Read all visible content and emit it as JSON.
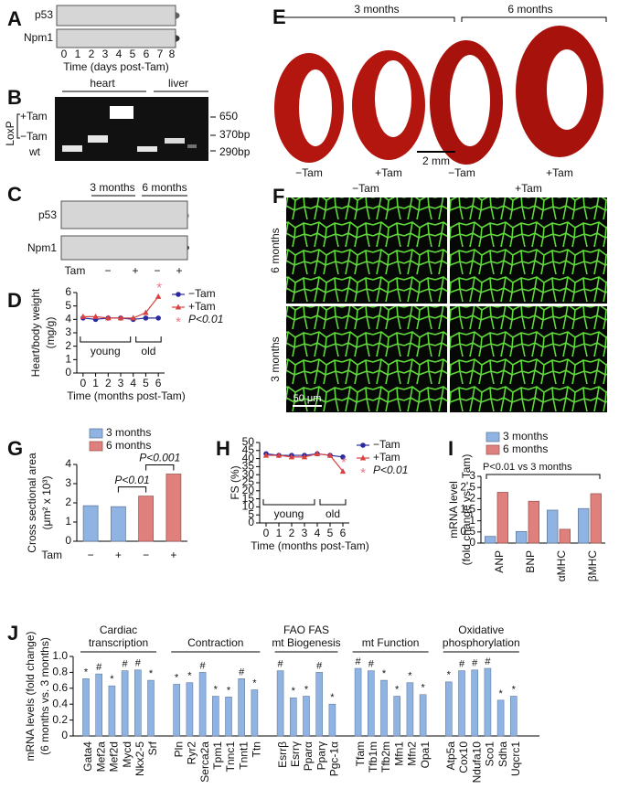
{
  "panel_a": {
    "label": "A",
    "rows": [
      "p53",
      "Npm1"
    ],
    "lanes": [
      "0",
      "1",
      "2",
      "3",
      "4",
      "5",
      "6",
      "7",
      "8"
    ],
    "xlabel": "Time (days post-Tam)"
  },
  "panel_b": {
    "label": "B",
    "groups": [
      "heart",
      "liver"
    ],
    "loxp": "LoxP",
    "bands": [
      "+Tam",
      "−Tam",
      "wt"
    ],
    "sizes": [
      "650",
      "370bp",
      "290bp"
    ]
  },
  "panel_c": {
    "label": "C",
    "groups": [
      "3 months",
      "6 months"
    ],
    "rows": [
      "p53",
      "Npm1"
    ],
    "tam_label": "Tam",
    "tam": [
      "−",
      "+",
      "−",
      "+"
    ]
  },
  "panel_e": {
    "label": "E",
    "groups": [
      "3 months",
      "6 months"
    ],
    "conditions": [
      "−Tam",
      "+Tam",
      "−Tam",
      "+Tam"
    ],
    "scale": "2 mm"
  },
  "panel_f": {
    "label": "F",
    "columns": [
      "−Tam",
      "+Tam"
    ],
    "rows": [
      "6 months",
      "3 months"
    ],
    "scale": "50 μm"
  },
  "chart_data": [
    {
      "panel": "D",
      "type": "line",
      "x": [
        0,
        1,
        2,
        3,
        4,
        5,
        6
      ],
      "xlim": [
        -0.5,
        6.5
      ],
      "xticks": [
        0,
        1,
        2,
        3,
        4,
        5,
        6
      ],
      "ylim": [
        0,
        6
      ],
      "yticks": [
        0,
        1,
        2,
        3,
        4,
        5,
        6
      ],
      "xlabel": "Time (months post-Tam)",
      "ylabel": [
        "Heart/body weight",
        "(mg/g)"
      ],
      "series": [
        {
          "name": "−Tam",
          "color": "#2a2a9e",
          "values": [
            4.1,
            4.0,
            4.1,
            4.1,
            4.0,
            4.1,
            4.1
          ]
        },
        {
          "name": "+Tam",
          "color": "#d94040",
          "values": [
            4.2,
            4.2,
            4.1,
            4.1,
            4.1,
            4.5,
            5.7
          ]
        }
      ],
      "significance": {
        "symbol": "*",
        "label": "P<0.01",
        "color": "#e87a8a"
      },
      "brackets": [
        "young",
        "old"
      ]
    },
    {
      "panel": "G",
      "type": "bar",
      "categories": [
        "−",
        "+",
        "−",
        "+"
      ],
      "category_title": "Tam",
      "ylim": [
        0,
        4
      ],
      "yticks": [
        0,
        1,
        2,
        3,
        4
      ],
      "ylabel": [
        "Cross sectional area",
        "(μm² x 10³)"
      ],
      "series": [
        {
          "name": "3 months",
          "color": "#8fb4e3",
          "values": [
            1.85,
            1.8,
            null,
            null
          ]
        },
        {
          "name": "6 months",
          "color": "#e0807c",
          "values": [
            null,
            null,
            2.35,
            3.5
          ]
        }
      ],
      "annotations": [
        "P<0.01",
        "P<0.001"
      ]
    },
    {
      "panel": "H",
      "type": "line",
      "x": [
        0,
        1,
        2,
        3,
        4,
        5,
        6
      ],
      "xlim": [
        -0.5,
        6.5
      ],
      "xticks": [
        0,
        1,
        2,
        3,
        4,
        5,
        6
      ],
      "ylim": [
        0,
        50
      ],
      "yticks": [
        0,
        5,
        10,
        15,
        20,
        25,
        30,
        35,
        40,
        45,
        50
      ],
      "xlabel": "Time (months post-Tam)",
      "ylabel": [
        "FS (%)"
      ],
      "series": [
        {
          "name": "−Tam",
          "color": "#2a2a9e",
          "values": [
            43,
            42,
            42,
            42,
            43,
            42,
            41
          ]
        },
        {
          "name": "+Tam",
          "color": "#d94040",
          "values": [
            42,
            42,
            41,
            41,
            43,
            42,
            32
          ]
        }
      ],
      "significance": {
        "symbol": "*",
        "label": "P<0.01",
        "color": "#e87a8a"
      },
      "brackets": [
        "young",
        "old"
      ]
    },
    {
      "panel": "I",
      "type": "bar",
      "categories": [
        "ANP",
        "BNP",
        "αMHC",
        "βMHC"
      ],
      "ylim": [
        0,
        3
      ],
      "yticks": [
        0,
        0.5,
        1,
        1.5,
        2,
        2.5,
        3
      ],
      "ylabel": [
        "mRNA level",
        "(fold change vs. - Tam)"
      ],
      "series": [
        {
          "name": "3 months",
          "color": "#8fb4e3",
          "values": [
            0.3,
            0.52,
            1.48,
            1.55
          ]
        },
        {
          "name": "6 months",
          "color": "#e0807c",
          "values": [
            2.28,
            1.88,
            0.62,
            2.22
          ]
        }
      ],
      "annotation": "P<0.01 vs 3 months"
    },
    {
      "panel": "J",
      "type": "bar",
      "color": "#8fb4e3",
      "ylim": [
        0,
        1
      ],
      "yticks": [
        0,
        0.2,
        0.4,
        0.6,
        0.8,
        {
          "value": 1,
          "label": "1.0"
        }
      ],
      "ylabel": [
        "mRNA levels (fold change)",
        "(6 months vs. 3 months)"
      ],
      "groups": [
        {
          "label": [
            "Cardiac",
            "transcription"
          ],
          "categories": [
            "Gata4",
            "Mef2a",
            "Mef2d",
            "Mycd",
            "Nkx2-5",
            "Srf"
          ],
          "values": [
            0.72,
            0.78,
            0.63,
            0.82,
            0.83,
            0.7
          ],
          "markers": [
            "*",
            "#",
            "*",
            "#",
            "#",
            "*"
          ]
        },
        {
          "label": [
            "Contraction"
          ],
          "categories": [
            "Pln",
            "Ryr2",
            "Serca2a",
            "Tpm1",
            "Tnnc1",
            "Tnnt1",
            "Ttn"
          ],
          "values": [
            0.65,
            0.67,
            0.8,
            0.5,
            0.49,
            0.72,
            0.58
          ],
          "markers": [
            "*",
            "*",
            "#",
            "*",
            "*",
            "#",
            "*"
          ]
        },
        {
          "label": [
            "FAO FAS",
            "mt Biogenesis"
          ],
          "categories": [
            "Esrrβ",
            "Esrrγ",
            "Pparα",
            "Pparγ",
            "Pgc-1α"
          ],
          "values": [
            0.82,
            0.48,
            0.5,
            0.8,
            0.4
          ],
          "markers": [
            "#",
            "*",
            "*",
            "#",
            "*"
          ]
        },
        {
          "label": [
            "mt Function"
          ],
          "categories": [
            "Tfam",
            "Tfb1m",
            "Tfb2m",
            "Mfn1",
            "Mfn2",
            "Opa1"
          ],
          "values": [
            0.85,
            0.82,
            0.7,
            0.5,
            0.67,
            0.52
          ],
          "markers": [
            "#",
            "#",
            "*",
            "*",
            "*",
            "*"
          ]
        },
        {
          "label": [
            "Oxidative",
            "phosphorylation"
          ],
          "categories": [
            "Atp5a",
            "Cox10",
            "Ndufa10",
            "Sco1",
            "Sdha",
            "Uqcrc1"
          ],
          "values": [
            0.68,
            0.82,
            0.83,
            0.85,
            0.45,
            0.5
          ],
          "markers": [
            "*",
            "#",
            "#",
            "#",
            "*",
            "*"
          ]
        }
      ]
    }
  ]
}
